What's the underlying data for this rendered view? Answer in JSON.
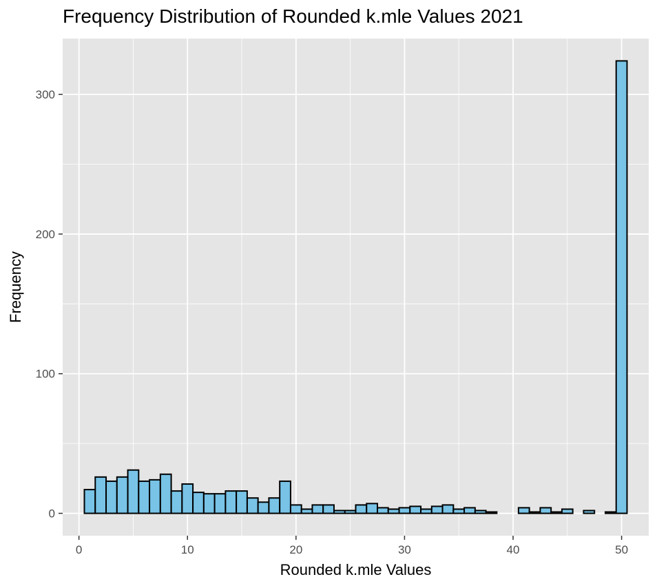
{
  "chart_data": {
    "type": "bar",
    "title": "Frequency Distribution of Rounded k.mle Values 2021",
    "xlabel": "Rounded k.mle Values",
    "ylabel": "Frequency",
    "xlim": [
      -1.5,
      52.5
    ],
    "ylim": [
      -16,
      340
    ],
    "x_ticks": [
      0,
      10,
      20,
      30,
      40,
      50
    ],
    "y_ticks": [
      0,
      100,
      200,
      300
    ],
    "grid": true,
    "bin_width": 1,
    "x": [
      1,
      2,
      3,
      4,
      5,
      6,
      7,
      8,
      9,
      10,
      11,
      12,
      13,
      14,
      15,
      16,
      17,
      18,
      19,
      20,
      21,
      22,
      23,
      24,
      25,
      26,
      27,
      28,
      29,
      30,
      31,
      32,
      33,
      34,
      35,
      36,
      37,
      38,
      39,
      40,
      41,
      42,
      43,
      44,
      45,
      46,
      47,
      48,
      49,
      50
    ],
    "values": [
      17,
      26,
      23,
      26,
      31,
      23,
      24,
      28,
      16,
      21,
      15,
      14,
      14,
      16,
      16,
      11,
      8,
      11,
      23,
      6,
      3,
      6,
      6,
      2,
      2,
      6,
      7,
      4,
      3,
      4,
      5,
      3,
      5,
      6,
      3,
      4,
      2,
      1,
      0,
      0,
      4,
      1,
      4,
      1,
      3,
      0,
      2,
      0,
      1,
      324
    ],
    "colors": {
      "fill": "#78c3e6",
      "stroke": "#000000",
      "panel": "#e5e5e5",
      "grid": "#ffffff"
    }
  }
}
